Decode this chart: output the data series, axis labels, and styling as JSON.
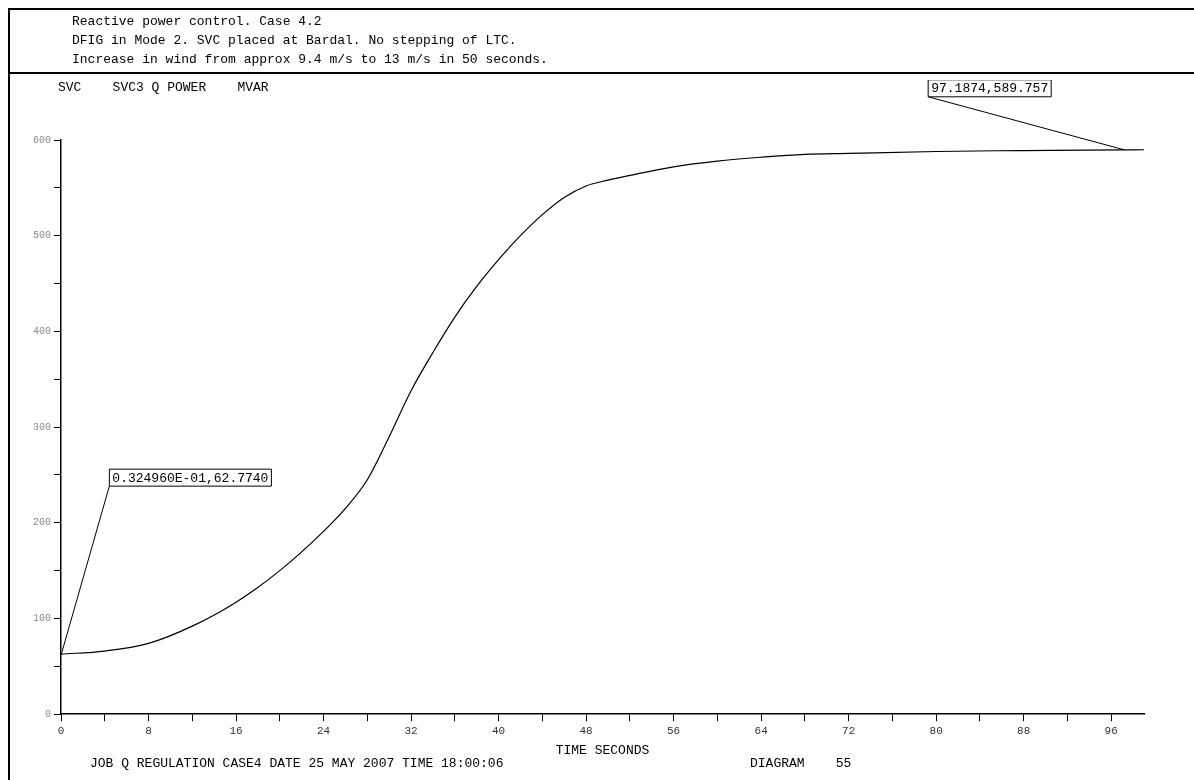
{
  "chart_data": {
    "type": "line",
    "title": "Reactive power control. Case 4.2",
    "subtitle": "DFIG in Mode 2. SVC placed at Bardal. No stepping of LTC.\nIncrease in wind from approx 9.4 m/s to 13 m/s in 50 seconds.",
    "ylabel": "SVC    SVC3 Q POWER    MVAR",
    "xlabel": "TIME SECONDS",
    "x": [
      0,
      4,
      8,
      12,
      16,
      20,
      24,
      26,
      28,
      30,
      32,
      34,
      36,
      38,
      40,
      42,
      44,
      46,
      48,
      50,
      52,
      56,
      60,
      64,
      68,
      72,
      80,
      88,
      97.1874,
      99
    ],
    "series": [
      {
        "color": "#000000",
        "values": [
          62.8,
          66,
          74,
          92,
          117,
          150,
          191,
          215,
          245,
          290,
          338,
          378,
          415,
          447,
          475,
          500,
          522,
          540,
          552,
          558,
          563,
          572,
          578,
          582,
          585,
          586,
          588,
          589,
          589.757,
          589.8
        ]
      }
    ],
    "xlim": [
      0,
      99
    ],
    "xticks": [
      0,
      {
        "value": 4,
        "label": null
      },
      8,
      {
        "value": 12,
        "label": null
      },
      16,
      {
        "value": 20,
        "label": null
      },
      24,
      {
        "value": 28,
        "label": null
      },
      32,
      {
        "value": 36,
        "label": null
      },
      40,
      {
        "value": 44,
        "label": null
      },
      48,
      {
        "value": 52,
        "label": null
      },
      56,
      {
        "value": 60,
        "label": null
      },
      64,
      {
        "value": 68,
        "label": null
      },
      72,
      {
        "value": 76,
        "label": null
      },
      80,
      {
        "value": 84,
        "label": null
      },
      88,
      {
        "value": 92,
        "label": null
      },
      96
    ],
    "ylim": [
      0,
      600
    ],
    "yticks": [
      0,
      {
        "value": 50,
        "label": null
      },
      100,
      {
        "value": 150,
        "label": null
      },
      200,
      {
        "value": 250,
        "label": null
      },
      300,
      {
        "value": 350,
        "label": null
      },
      400,
      {
        "value": 450,
        "label": null
      },
      500,
      {
        "value": 550,
        "label": null
      },
      600
    ],
    "grid": false,
    "legend": false,
    "marker": "none",
    "line_style": "solid",
    "annotations": [
      {
        "text": "0.324960E-01,62.7740",
        "x": 0.0325,
        "y": 62.774
      },
      {
        "text": "97.1874,589.757",
        "x": 97.1874,
        "y": 589.757
      },
      "JOB Q REGULATION CASE4 DATE 25 MAY 2007 TIME 18:00:06",
      "DIAGRAM    55"
    ]
  }
}
